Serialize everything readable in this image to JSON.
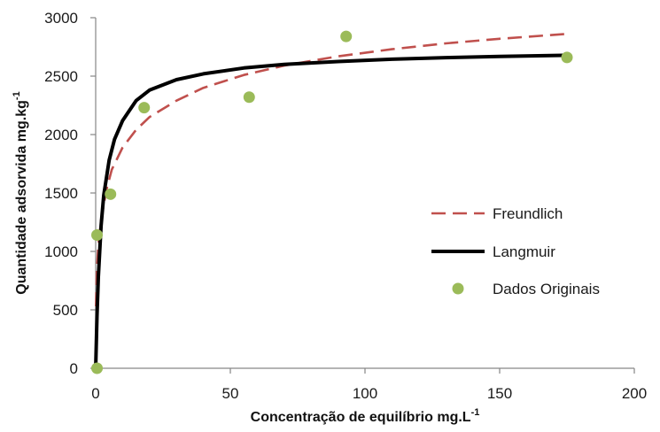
{
  "chart_data": {
    "type": "scatter",
    "title": "",
    "xlabel": "Concentração de equilíbrio mg.L",
    "xlabel_sup": "-1",
    "ylabel": "Quantidade adsorvida mg.kg",
    "ylabel_sup": "-1",
    "xlim": [
      0,
      200
    ],
    "ylim": [
      0,
      3000
    ],
    "x_ticks": [
      "0",
      "50",
      "100",
      "150",
      "200"
    ],
    "y_ticks": [
      "0",
      "500",
      "1000",
      "1500",
      "2000",
      "2500",
      "3000"
    ],
    "grid": false,
    "legend_position": "right",
    "series": [
      {
        "name": "Freundlich",
        "kind": "line",
        "style": "dashed",
        "color": "#c0504d",
        "x": [
          0.1,
          0.5,
          1,
          2,
          4,
          6,
          10,
          15,
          20,
          30,
          40,
          55,
          70,
          90,
          110,
          130,
          150,
          174
        ],
        "y": [
          530,
          870,
          1050,
          1270,
          1530,
          1700,
          1890,
          2040,
          2150,
          2290,
          2400,
          2510,
          2590,
          2670,
          2730,
          2780,
          2820,
          2860
        ]
      },
      {
        "name": "Langmuir",
        "kind": "line",
        "style": "solid",
        "color": "#000000",
        "x": [
          0,
          0.5,
          1,
          2,
          3,
          5,
          7,
          10,
          15,
          20,
          30,
          40,
          55,
          70,
          90,
          110,
          130,
          150,
          174
        ],
        "y": [
          0,
          450,
          780,
          1220,
          1480,
          1780,
          1960,
          2120,
          2290,
          2380,
          2470,
          2520,
          2570,
          2600,
          2625,
          2645,
          2658,
          2668,
          2678
        ]
      },
      {
        "name": "Dados Originais",
        "kind": "scatter",
        "color": "#9bbb59",
        "x": [
          0.5,
          0.5,
          5.5,
          18,
          57,
          93,
          175
        ],
        "y": [
          0,
          1140,
          1490,
          2230,
          2320,
          2840,
          2660
        ]
      }
    ]
  }
}
